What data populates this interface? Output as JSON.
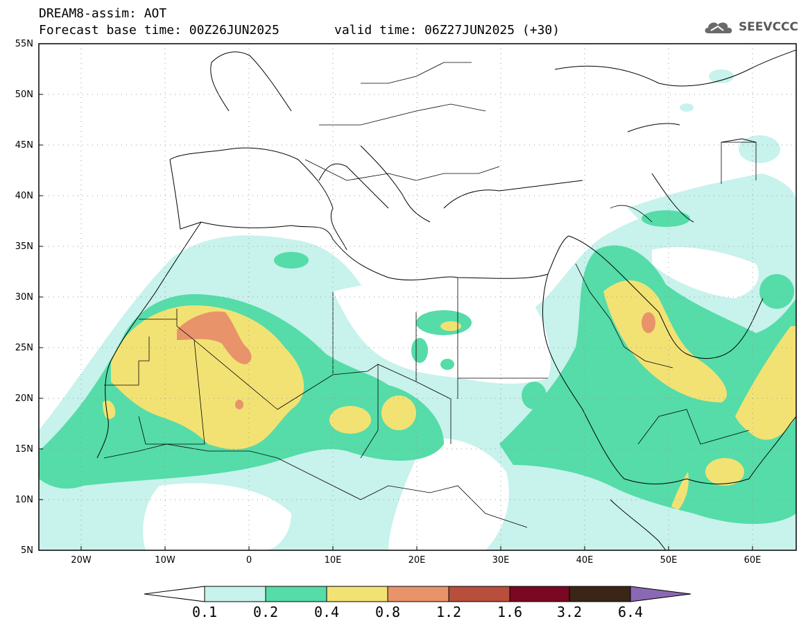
{
  "header": {
    "title_line1": "DREAM8-assim: AOT",
    "base_time": "Forecast base time: 00Z26JUN2025",
    "valid_time": "valid time: 06Z27JUN2025 (+30)",
    "logo_text": "SEEVCCC"
  },
  "map": {
    "lat_labels": [
      "55N",
      "50N",
      "45N",
      "40N",
      "35N",
      "30N",
      "25N",
      "20N",
      "15N",
      "10N",
      "5N"
    ],
    "lon_labels": [
      "20W",
      "10W",
      "0",
      "10E",
      "20E",
      "30E",
      "40E",
      "50E",
      "60E"
    ]
  },
  "colorbar": {
    "labels": [
      "0.1",
      "0.2",
      "0.4",
      "0.8",
      "1.2",
      "1.6",
      "3.2",
      "6.4"
    ],
    "colors": [
      "#c8f2ec",
      "#55dca8",
      "#f2e274",
      "#e8936a",
      "#b84e3c",
      "#7a0822",
      "#3b2516",
      "#8a68b4"
    ]
  }
}
